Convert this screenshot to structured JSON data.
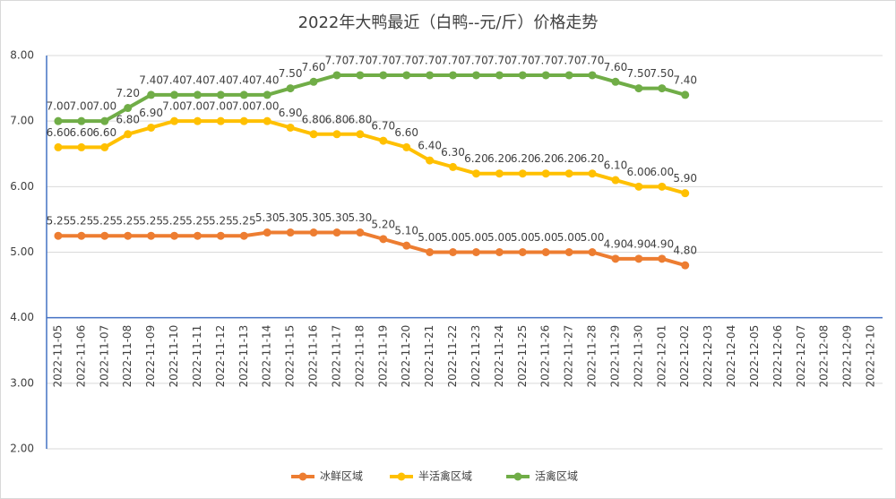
{
  "chart_data": {
    "type": "line",
    "title": "2022年大鸭最近（白鸭--元/斤）价格走势",
    "categories": [
      "2022-11-05",
      "2022-11-06",
      "2022-11-07",
      "2022-11-08",
      "2022-11-09",
      "2022-11-10",
      "2022-11-11",
      "2022-11-12",
      "2022-11-13",
      "2022-11-14",
      "2022-11-15",
      "2022-11-16",
      "2022-11-17",
      "2022-11-18",
      "2022-11-19",
      "2022-11-20",
      "2022-11-21",
      "2022-11-22",
      "2022-11-23",
      "2022-11-24",
      "2022-11-25",
      "2022-11-26",
      "2022-11-27",
      "2022-11-28",
      "2022-11-29",
      "2022-11-30",
      "2022-12-01",
      "2022-12-02",
      "2022-12-03",
      "2022-12-04",
      "2022-12-05",
      "2022-12-06",
      "2022-12-07",
      "2022-12-08",
      "2022-12-09",
      "2022-12-10"
    ],
    "series": [
      {
        "name": "冰鲜区域",
        "color": "#ed7d31",
        "values": [
          5.25,
          5.25,
          5.25,
          5.25,
          5.25,
          5.25,
          5.25,
          5.25,
          5.25,
          5.3,
          5.3,
          5.3,
          5.3,
          5.3,
          5.2,
          5.1,
          5,
          5,
          5,
          5,
          5,
          5,
          5,
          5,
          4.9,
          4.9,
          4.9,
          4.8,
          null,
          null,
          null,
          null,
          null,
          null,
          null,
          null
        ],
        "value_labels": [
          "5.25",
          "5.25",
          "5.25",
          "5.25",
          "5.25",
          "5.25",
          "5.25",
          "5.25",
          "5.25",
          "5.30",
          "5.30",
          "5.30",
          "5.30",
          "5.30",
          "5.20",
          "5.10",
          "5.00",
          "5.00",
          "5.00",
          "5.00",
          "5.00",
          "5.00",
          "5.00",
          "5.00",
          "4.90",
          "4.90",
          "4.90",
          "4.80",
          null,
          null,
          null,
          null,
          null,
          null,
          null,
          null
        ]
      },
      {
        "name": "半活禽区域",
        "color": "#ffc000",
        "values": [
          6.6,
          6.6,
          6.6,
          6.8,
          6.9,
          7,
          7,
          7,
          7,
          7,
          6.9,
          6.8,
          6.8,
          6.8,
          6.7,
          6.6,
          6.4,
          6.3,
          6.2,
          6.2,
          6.2,
          6.2,
          6.2,
          6.2,
          6.1,
          6,
          6,
          5.9,
          null,
          null,
          null,
          null,
          null,
          null,
          null,
          null
        ],
        "value_labels": [
          "6.60",
          "6.60",
          "6.60",
          "6.80",
          "6.90",
          "7.00",
          "7.00",
          "7.00",
          "7.00",
          "7.00",
          "6.90",
          "6.80",
          "6.80",
          "6.80",
          "6.70",
          "6.60",
          "6.40",
          "6.30",
          "6.20",
          "6.20",
          "6.20",
          "6.20",
          "6.20",
          "6.20",
          "6.10",
          "6.00",
          "6.00",
          "5.90",
          null,
          null,
          null,
          null,
          null,
          null,
          null,
          null
        ]
      },
      {
        "name": "活禽区域",
        "color": "#70ad47",
        "values": [
          7,
          7,
          7,
          7.2,
          7.4,
          7.4,
          7.4,
          7.4,
          7.4,
          7.4,
          7.5,
          7.6,
          7.7,
          7.7,
          7.7,
          7.7,
          7.7,
          7.7,
          7.7,
          7.7,
          7.7,
          7.7,
          7.7,
          7.7,
          7.6,
          7.5,
          7.5,
          7.4,
          null,
          null,
          null,
          null,
          null,
          null,
          null,
          null
        ],
        "value_labels": [
          "7.00",
          "7.00",
          "7.00",
          "7.20",
          "7.40",
          "7.40",
          "7.40",
          "7.40",
          "7.40",
          "7.40",
          "7.50",
          "7.60",
          "7.70",
          "7.70",
          "7.70",
          "7.70",
          "7.70",
          "7.70",
          "7.70",
          "7.70",
          "7.70",
          "7.70",
          "7.70",
          "7.70",
          "7.60",
          "7.50",
          "7.50",
          "7.40",
          null,
          null,
          null,
          null,
          null,
          null,
          null,
          null
        ]
      }
    ],
    "ylim": [
      2,
      8
    ],
    "yticks": [
      {
        "value": 2,
        "label": "2.00"
      },
      {
        "value": 3,
        "label": "3.00"
      },
      {
        "value": 4,
        "label": "4.00"
      },
      {
        "value": 5,
        "label": "5.00"
      },
      {
        "value": 6,
        "label": "6.00"
      },
      {
        "value": 7,
        "label": "7.00"
      },
      {
        "value": 8,
        "label": "8.00"
      }
    ],
    "x_axis_at": 4,
    "grid": true,
    "legend": "bottom"
  }
}
